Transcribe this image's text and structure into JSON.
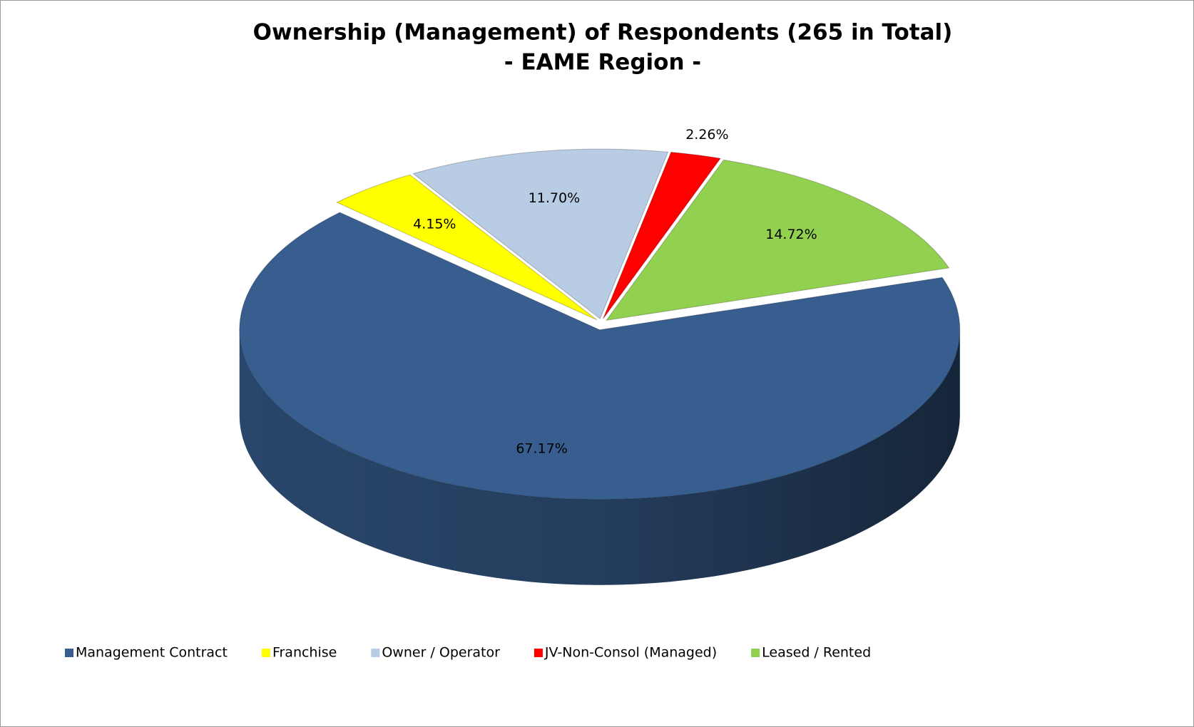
{
  "chart_data": {
    "type": "pie",
    "title": "Ownership (Management) of Respondents (265 in Total)",
    "subtitle": "- EAME Region -",
    "categories": [
      "Management Contract",
      "Franchise",
      "Owner / Operator",
      "JV-Non-Consol (Managed)",
      "Leased / Rented"
    ],
    "values": [
      67.17,
      4.15,
      11.7,
      2.26,
      14.72
    ],
    "value_labels": [
      "67.17%",
      "4.15%",
      "11.70%",
      "2.26%",
      "14.72%"
    ],
    "colors": [
      "#375e8f",
      "#ffff00",
      "#b8cce4",
      "#ff0000",
      "#92d050"
    ],
    "legend": "bottom"
  }
}
